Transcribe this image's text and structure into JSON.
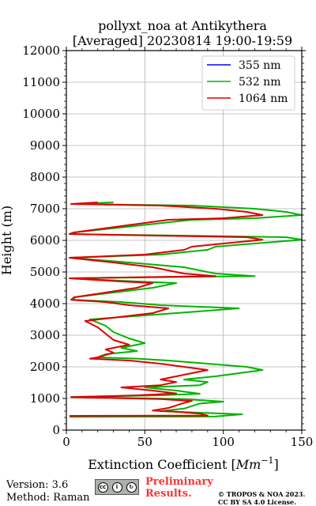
{
  "chart_data": {
    "type": "line",
    "title_line1": "pollyxt_noa at Antikythera",
    "title_line2": "[Averaged] 20230814 19:00-19:59",
    "xlabel": "Extinction Coefficient [",
    "xlabel_unit_base": "Mm",
    "xlabel_unit_exp": "−1",
    "xlabel_close": "]",
    "ylabel": "Height (m)",
    "xlim": [
      0,
      150
    ],
    "ylim": [
      0,
      12000
    ],
    "xticks": [
      0,
      50,
      100,
      150
    ],
    "yticks": [
      0,
      1000,
      2000,
      3000,
      4000,
      5000,
      6000,
      7000,
      8000,
      9000,
      10000,
      11000,
      12000
    ],
    "grid": true,
    "legend_position": "top-right",
    "series": [
      {
        "name": "355 nm",
        "color": "#0000ff",
        "points": []
      },
      {
        "name": "532 nm",
        "color": "#00b400",
        "points": [
          [
            2,
            420
          ],
          [
            95,
            430
          ],
          [
            112,
            500
          ],
          [
            90,
            540
          ],
          [
            60,
            600
          ],
          [
            75,
            680
          ],
          [
            80,
            760
          ],
          [
            85,
            840
          ],
          [
            100,
            900
          ],
          [
            75,
            980
          ],
          [
            3,
            1050
          ],
          [
            60,
            1100
          ],
          [
            85,
            1150
          ],
          [
            70,
            1250
          ],
          [
            50,
            1350
          ],
          [
            85,
            1420
          ],
          [
            90,
            1520
          ],
          [
            75,
            1600
          ],
          [
            95,
            1700
          ],
          [
            110,
            1800
          ],
          [
            125,
            1900
          ],
          [
            115,
            2000
          ],
          [
            90,
            2100
          ],
          [
            65,
            2200
          ],
          [
            45,
            2260
          ],
          [
            20,
            2300
          ],
          [
            25,
            2400
          ],
          [
            45,
            2500
          ],
          [
            35,
            2600
          ],
          [
            50,
            2750
          ],
          [
            40,
            2900
          ],
          [
            30,
            3100
          ],
          [
            25,
            3300
          ],
          [
            15,
            3500
          ],
          [
            70,
            3700
          ],
          [
            110,
            3850
          ],
          [
            60,
            3950
          ],
          [
            35,
            4050
          ],
          [
            5,
            4120
          ],
          [
            5,
            4200
          ],
          [
            55,
            4500
          ],
          [
            70,
            4650
          ],
          [
            45,
            4700
          ],
          [
            2,
            4800
          ],
          [
            120,
            4870
          ],
          [
            95,
            4950
          ],
          [
            85,
            5050
          ],
          [
            75,
            5150
          ],
          [
            40,
            5300
          ],
          [
            2,
            5450
          ],
          [
            60,
            5550
          ],
          [
            90,
            5700
          ],
          [
            95,
            5800
          ],
          [
            120,
            5900
          ],
          [
            150,
            6020
          ],
          [
            140,
            6100
          ],
          [
            2,
            6200
          ],
          [
            5,
            6250
          ],
          [
            80,
            6650
          ],
          [
            120,
            6700
          ],
          [
            150,
            6800
          ],
          [
            140,
            6900
          ],
          [
            120,
            7000
          ],
          [
            80,
            7100
          ],
          [
            5,
            7150
          ],
          [
            30,
            7200
          ]
        ]
      },
      {
        "name": "1064 nm",
        "color": "#dd0000",
        "points": [
          [
            2,
            450
          ],
          [
            90,
            460
          ],
          [
            85,
            520
          ],
          [
            70,
            580
          ],
          [
            55,
            620
          ],
          [
            65,
            700
          ],
          [
            70,
            780
          ],
          [
            75,
            860
          ],
          [
            80,
            920
          ],
          [
            60,
            980
          ],
          [
            3,
            1040
          ],
          [
            45,
            1100
          ],
          [
            70,
            1160
          ],
          [
            55,
            1250
          ],
          [
            35,
            1350
          ],
          [
            60,
            1420
          ],
          [
            70,
            1520
          ],
          [
            60,
            1600
          ],
          [
            70,
            1700
          ],
          [
            80,
            1800
          ],
          [
            90,
            1900
          ],
          [
            75,
            2000
          ],
          [
            60,
            2100
          ],
          [
            40,
            2200
          ],
          [
            15,
            2260
          ],
          [
            20,
            2300
          ],
          [
            30,
            2450
          ],
          [
            25,
            2550
          ],
          [
            40,
            2700
          ],
          [
            30,
            2850
          ],
          [
            25,
            3050
          ],
          [
            20,
            3250
          ],
          [
            12,
            3450
          ],
          [
            55,
            3700
          ],
          [
            65,
            3850
          ],
          [
            40,
            3950
          ],
          [
            25,
            4050
          ],
          [
            3,
            4120
          ],
          [
            5,
            4200
          ],
          [
            45,
            4500
          ],
          [
            55,
            4650
          ],
          [
            35,
            4700
          ],
          [
            2,
            4800
          ],
          [
            95,
            4870
          ],
          [
            75,
            4950
          ],
          [
            65,
            5050
          ],
          [
            55,
            5150
          ],
          [
            30,
            5300
          ],
          [
            2,
            5450
          ],
          [
            50,
            5550
          ],
          [
            75,
            5700
          ],
          [
            80,
            5800
          ],
          [
            100,
            5900
          ],
          [
            125,
            6020
          ],
          [
            115,
            6100
          ],
          [
            2,
            6200
          ],
          [
            5,
            6250
          ],
          [
            65,
            6650
          ],
          [
            100,
            6700
          ],
          [
            125,
            6800
          ],
          [
            115,
            6900
          ],
          [
            95,
            7000
          ],
          [
            60,
            7100
          ],
          [
            3,
            7150
          ],
          [
            20,
            7200
          ]
        ]
      }
    ]
  },
  "footer": {
    "version": "Version: 3.6",
    "method": "Method: Raman",
    "preliminary_line1": "Preliminary",
    "preliminary_line2": "Results.",
    "copyright_line1": "© TROPOS & NOA 2023.",
    "copyright_line2": "CC BY SA 4.0 License."
  }
}
